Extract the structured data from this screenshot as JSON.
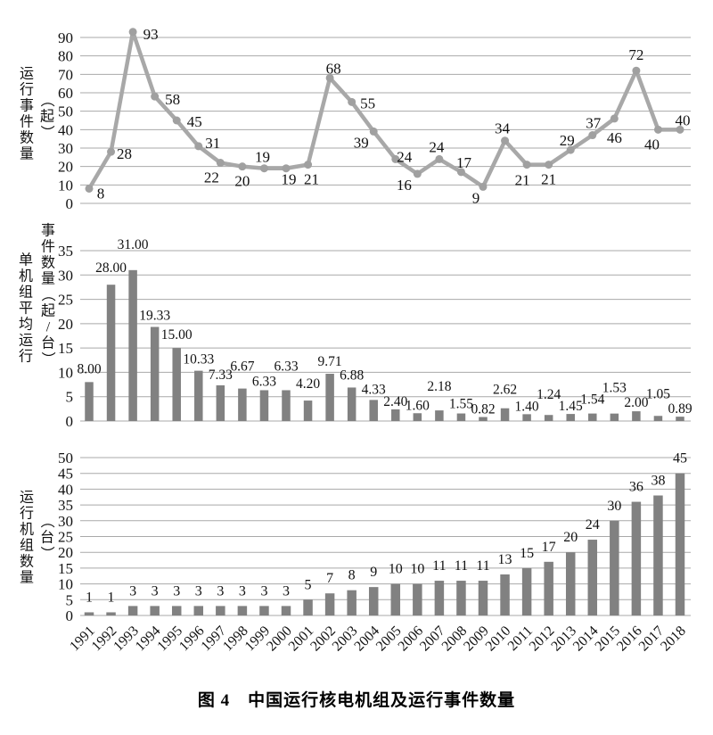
{
  "caption": "图 4　中国运行核电机组及运行事件数量",
  "colors": {
    "line": "#a8a8a8",
    "marker": "#a0a0a0",
    "bar": "#818181",
    "grid": "#a9a9a9",
    "text": "#111111"
  },
  "chart_data": [
    {
      "id": "operating-events",
      "type": "line",
      "ylabel": "运行事件数量",
      "ylabel_unit": "（起）",
      "categories": [
        "1991",
        "1992",
        "1993",
        "1994",
        "1995",
        "1996",
        "1997",
        "1998",
        "1999",
        "2000",
        "2001",
        "2002",
        "2003",
        "2004",
        "2005",
        "2006",
        "2007",
        "2008",
        "2009",
        "2010",
        "2011",
        "2012",
        "2013",
        "2014",
        "2015",
        "2016",
        "2017",
        "2018"
      ],
      "values": [
        8,
        28,
        93,
        58,
        45,
        31,
        22,
        20,
        19,
        19,
        21,
        68,
        55,
        39,
        24,
        16,
        24,
        17,
        9,
        34,
        21,
        21,
        29,
        37,
        46,
        72,
        40,
        40
      ],
      "value_labels": [
        "8",
        "28",
        "93",
        "58",
        "45",
        "31",
        "22",
        "20",
        "19",
        "19",
        "21",
        "68",
        "55",
        "39",
        "24",
        "16",
        "24",
        "17",
        "9",
        "34",
        "21",
        "21",
        "29",
        "37",
        "46",
        "72",
        "40",
        "40"
      ],
      "ylim": [
        0,
        90
      ],
      "ytick_step": 10,
      "yticks": [
        0,
        10,
        20,
        30,
        40,
        50,
        60,
        70,
        80,
        90
      ],
      "grid": true,
      "x_axis_labels_shown": false
    },
    {
      "id": "events-per-unit",
      "type": "bar",
      "ylabel": "单机组平均运行",
      "ylabel_unit": "事件数量（起/台）",
      "categories": [
        "1991",
        "1992",
        "1993",
        "1994",
        "1995",
        "1996",
        "1997",
        "1998",
        "1999",
        "2000",
        "2001",
        "2002",
        "2003",
        "2004",
        "2005",
        "2006",
        "2007",
        "2008",
        "2009",
        "2010",
        "2011",
        "2012",
        "2013",
        "2014",
        "2015",
        "2016",
        "2017",
        "2018"
      ],
      "values": [
        8.0,
        28.0,
        31.0,
        19.33,
        15.0,
        10.33,
        7.33,
        6.67,
        6.33,
        6.33,
        4.2,
        9.71,
        6.88,
        4.33,
        2.4,
        1.6,
        2.18,
        1.55,
        0.82,
        2.62,
        1.4,
        1.24,
        1.45,
        1.54,
        1.53,
        2.0,
        1.05,
        0.89
      ],
      "value_labels": [
        "8.00",
        "28.00",
        "31.00",
        "19.33",
        "15.00",
        "10.33",
        "7.33",
        "6.67",
        "6.33",
        "6.33",
        "4.20",
        "9.71",
        "6.88",
        "4.33",
        "2.40",
        "1.60",
        "2.18",
        "1.55",
        "0.82",
        "2.62",
        "1.40",
        "1.24",
        "1.45",
        "1.54",
        "1.53",
        "2.00",
        "1.05",
        "0.89"
      ],
      "ylim": [
        0,
        35
      ],
      "ytick_step": 5,
      "yticks": [
        0,
        5,
        10,
        15,
        20,
        25,
        30,
        35
      ],
      "grid": true,
      "x_axis_labels_shown": false
    },
    {
      "id": "operating-units",
      "type": "bar",
      "ylabel": "运行机组数量",
      "ylabel_unit": "（台）",
      "categories": [
        "1991",
        "1992",
        "1993",
        "1994",
        "1995",
        "1996",
        "1997",
        "1998",
        "1999",
        "2000",
        "2001",
        "2002",
        "2003",
        "2004",
        "2005",
        "2006",
        "2007",
        "2008",
        "2009",
        "2010",
        "2011",
        "2012",
        "2013",
        "2014",
        "2015",
        "2016",
        "2017",
        "2018"
      ],
      "values": [
        1,
        1,
        3,
        3,
        3,
        3,
        3,
        3,
        3,
        3,
        5,
        7,
        8,
        9,
        10,
        10,
        11,
        11,
        11,
        13,
        15,
        17,
        20,
        24,
        30,
        36,
        38,
        45
      ],
      "value_labels": [
        "1",
        "1",
        "3",
        "3",
        "3",
        "3",
        "3",
        "3",
        "3",
        "3",
        "5",
        "7",
        "8",
        "9",
        "10",
        "10",
        "11",
        "11",
        "11",
        "13",
        "15",
        "17",
        "20",
        "24",
        "30",
        "36",
        "38",
        "45"
      ],
      "ylim": [
        0,
        50
      ],
      "ytick_step": 5,
      "yticks": [
        0,
        5,
        10,
        15,
        20,
        25,
        30,
        35,
        40,
        45,
        50
      ],
      "grid": true,
      "x_axis_labels_shown": true
    }
  ]
}
